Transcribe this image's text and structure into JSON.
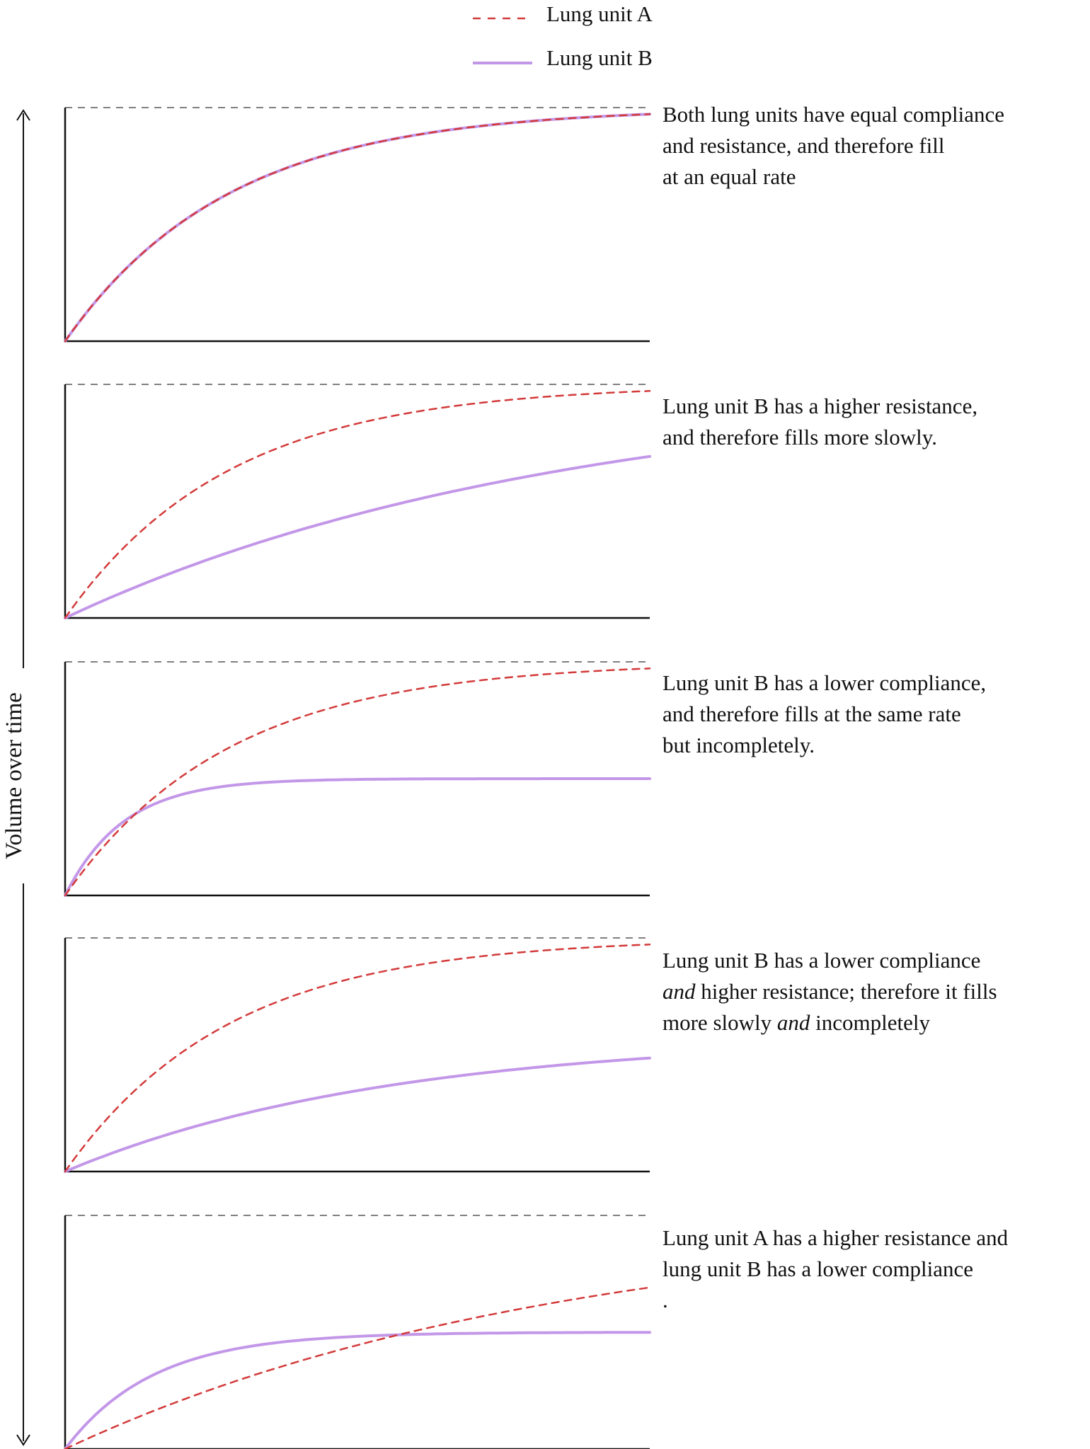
{
  "colors": {
    "lung_unit_a": "#d33a3a",
    "lung_unit_b": "#c397e8",
    "reference_line": "#808080",
    "axis": "#111111"
  },
  "legend": {
    "items": [
      {
        "label": "Lung unit A",
        "style": "dashed",
        "color": "#d33a3a"
      },
      {
        "label": "Lung unit B",
        "style": "solid",
        "color": "#c397e8"
      }
    ]
  },
  "chart_data": {
    "type": "line",
    "ylabel": "Volume over time",
    "legend_position": "top-center",
    "grid": false,
    "panels": [
      {
        "caption_lines": [
          [
            {
              "t": "Both lung units have equal compliance"
            }
          ],
          [
            {
              "t": "and resistance,  and therefore fill"
            }
          ],
          [
            {
              "t": "at an equal rate"
            }
          ]
        ],
        "series": [
          {
            "name": "Lung unit A",
            "max": 1.0,
            "tau": 0.28
          },
          {
            "name": "Lung unit B",
            "max": 1.0,
            "tau": 0.28
          }
        ]
      },
      {
        "caption_lines": [
          [
            {
              "t": "Lung unit B has a higher resistance,"
            }
          ],
          [
            {
              "t": "and therefore fills more slowly."
            }
          ]
        ],
        "series": [
          {
            "name": "Lung unit A",
            "max": 1.0,
            "tau": 0.28
          },
          {
            "name": "Lung unit B",
            "max": 1.0,
            "tau": 0.85
          }
        ]
      },
      {
        "caption_lines": [
          [
            {
              "t": "Lung unit B has a lower compliance,"
            }
          ],
          [
            {
              "t": "and therefore fills at the same rate"
            }
          ],
          [
            {
              "t": "but incompletely."
            }
          ]
        ],
        "series": [
          {
            "name": "Lung unit A",
            "max": 1.0,
            "tau": 0.28
          },
          {
            "name": "Lung unit B",
            "max": 0.5,
            "tau": 0.1
          }
        ]
      },
      {
        "caption_lines": [
          [
            {
              "t": "Lung unit B has a lower compliance"
            }
          ],
          [
            {
              "t": "and",
              "i": true
            },
            {
              "t": " higher resistance; therefore it fills"
            }
          ],
          [
            {
              "t": "more slowly "
            },
            {
              "t": "and",
              "i": true
            },
            {
              "t": " incompletely"
            }
          ]
        ],
        "series": [
          {
            "name": "Lung unit A",
            "max": 1.0,
            "tau": 0.28
          },
          {
            "name": "Lung unit B",
            "max": 0.58,
            "tau": 0.55
          }
        ]
      },
      {
        "caption_lines": [
          [
            {
              "t": "Lung unit A has a higher resistance and"
            }
          ],
          [
            {
              "t": "lung unit B has a lower compliance"
            }
          ],
          [
            {
              "t": "."
            }
          ]
        ],
        "series": [
          {
            "name": "Lung unit A",
            "max": 1.0,
            "tau": 0.85
          },
          {
            "name": "Lung unit B",
            "max": 0.5,
            "tau": 0.15
          }
        ]
      }
    ]
  }
}
